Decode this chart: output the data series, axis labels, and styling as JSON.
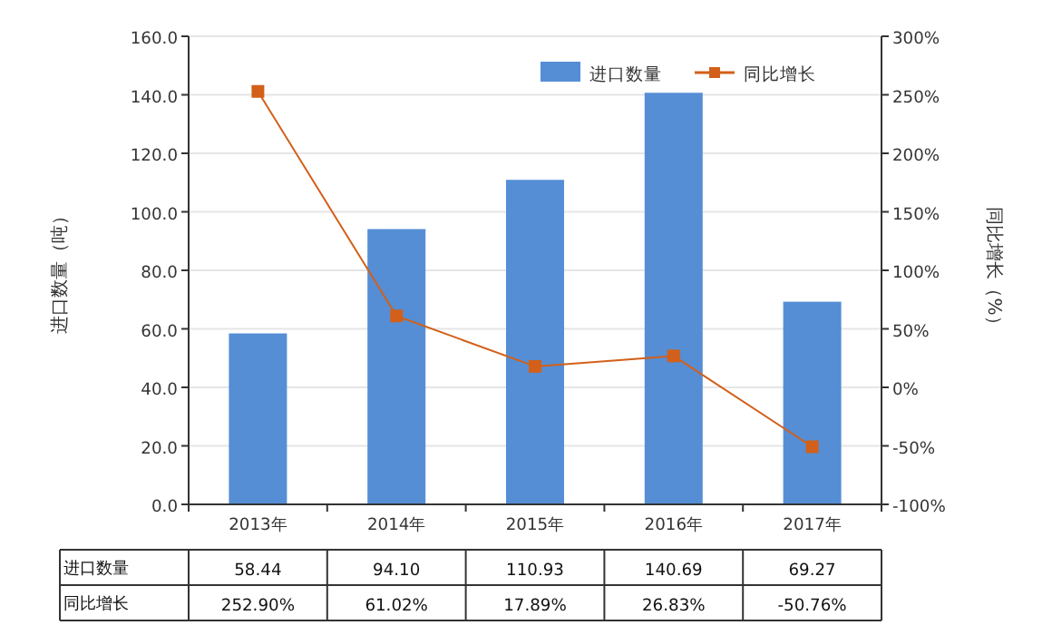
{
  "chart_data": {
    "type": "bar",
    "categories": [
      "2013年",
      "2014年",
      "2015年",
      "2016年",
      "2017年"
    ],
    "ylabel": "进口数量（吨）",
    "y2label": "同比增长（%）",
    "series": [
      {
        "name": "进口数量",
        "color": "#558ed5",
        "values": [
          58.44,
          94.1,
          110.93,
          140.69,
          69.27
        ],
        "value_labels": [
          "58.44",
          "94.10",
          "110.93",
          "140.69",
          "69.27"
        ]
      },
      {
        "name": "同比增长",
        "type": "line",
        "axis": "y2",
        "color": "#d2601a",
        "marker": "square",
        "values": [
          252.9,
          61.02,
          17.89,
          26.83,
          -50.76
        ],
        "value_labels": [
          "252.90%",
          "61.02%",
          "17.89%",
          "26.83%",
          "-50.76%"
        ]
      }
    ],
    "ylim": [
      0,
      160
    ],
    "yticks": [
      {
        "value": 0,
        "label": "0.0"
      },
      {
        "value": 20,
        "label": "20.0"
      },
      {
        "value": 40,
        "label": "40.0"
      },
      {
        "value": 60,
        "label": "60.0"
      },
      {
        "value": 80,
        "label": "80.0"
      },
      {
        "value": 100,
        "label": "100.0"
      },
      {
        "value": 120,
        "label": "120.0"
      },
      {
        "value": 140,
        "label": "140.0"
      },
      {
        "value": 160,
        "label": "160.0"
      }
    ],
    "y2lim": [
      -100,
      300
    ],
    "y2ticks": [
      {
        "value": -100,
        "label": "-100%"
      },
      {
        "value": -50,
        "label": "-50%"
      },
      {
        "value": 0,
        "label": "0%"
      },
      {
        "value": 50,
        "label": "50%"
      },
      {
        "value": 100,
        "label": "100%"
      },
      {
        "value": 150,
        "label": "150%"
      },
      {
        "value": 200,
        "label": "200%"
      },
      {
        "value": 250,
        "label": "250%"
      },
      {
        "value": 300,
        "label": "300%"
      }
    ],
    "grid": "y",
    "legend": "top right"
  }
}
